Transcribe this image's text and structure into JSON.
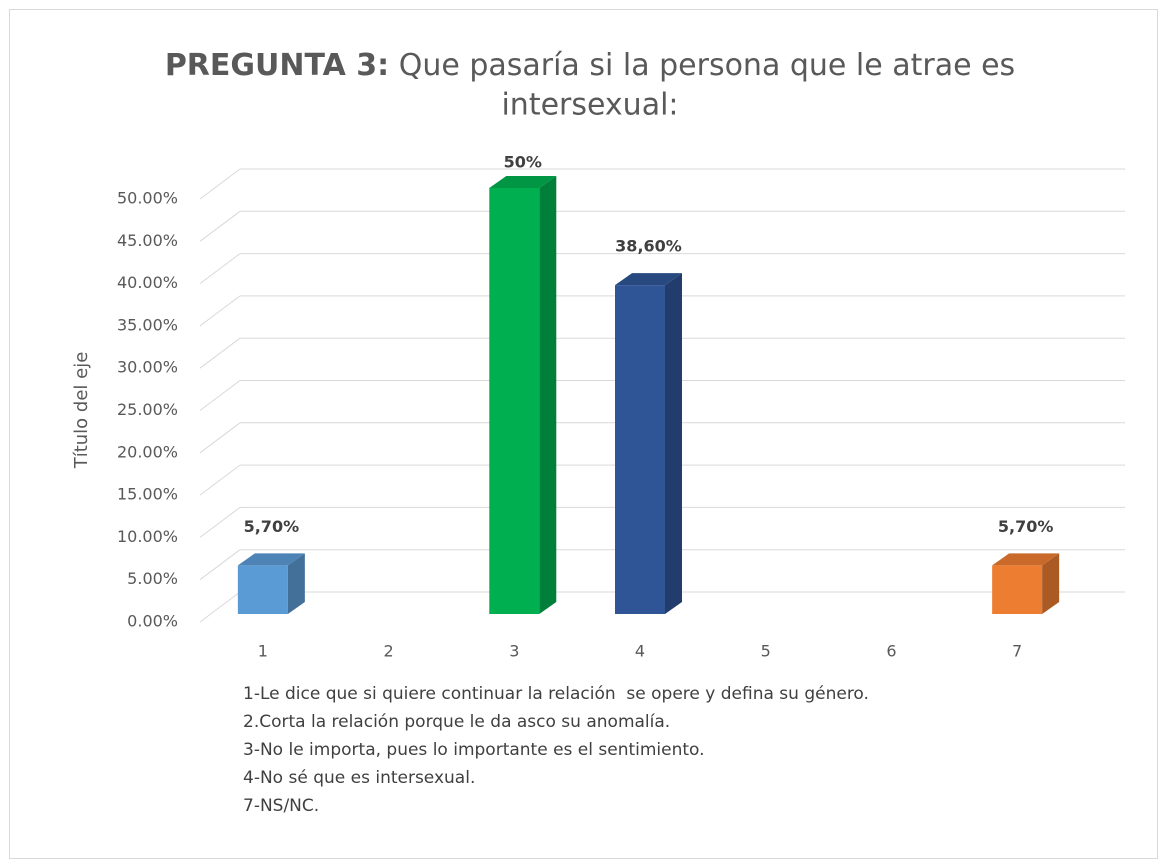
{
  "chart_data": {
    "type": "bar3d",
    "title": [
      "PREGUNTA 3:",
      "Que pasaría si la persona que le atrae es",
      "intersexual:"
    ],
    "y_label": "Título del eje",
    "categories": [
      "1",
      "2",
      "3",
      "4",
      "5",
      "6",
      "7"
    ],
    "values": [
      5.7,
      null,
      50,
      38.6,
      null,
      null,
      5.7
    ],
    "value_labels": [
      "5,70%",
      null,
      "50%",
      "38,60%",
      null,
      null,
      "5,70%"
    ],
    "colors": [
      "#5b9bd5",
      null,
      "#00b050",
      "#2f5597",
      null,
      null,
      "#ed7d31"
    ],
    "ylim": [
      0,
      50
    ],
    "yticks": [
      {
        "value": 0,
        "label": "0.00%"
      },
      {
        "value": 5,
        "label": "5.00%"
      },
      {
        "value": 10,
        "label": "10.00%"
      },
      {
        "value": 15,
        "label": "15.00%"
      },
      {
        "value": 20,
        "label": "20.00%"
      },
      {
        "value": 25,
        "label": "25.00%"
      },
      {
        "value": 30,
        "label": "30.00%"
      },
      {
        "value": 35,
        "label": "35.00%"
      },
      {
        "value": 40,
        "label": "40.00%"
      },
      {
        "value": 45,
        "label": "45.00%"
      },
      {
        "value": 50,
        "label": "50.00%"
      }
    ],
    "grid": true,
    "notes": [
      "1-Le dice que si quiere continuar la relación  se opere y defina su género.",
      "2.Corta la relación porque le da asco su anomalía.",
      "3-No le importa, pues lo importante es el sentimiento.",
      "4-No sé que es intersexual.",
      "7-NS/NC."
    ]
  }
}
